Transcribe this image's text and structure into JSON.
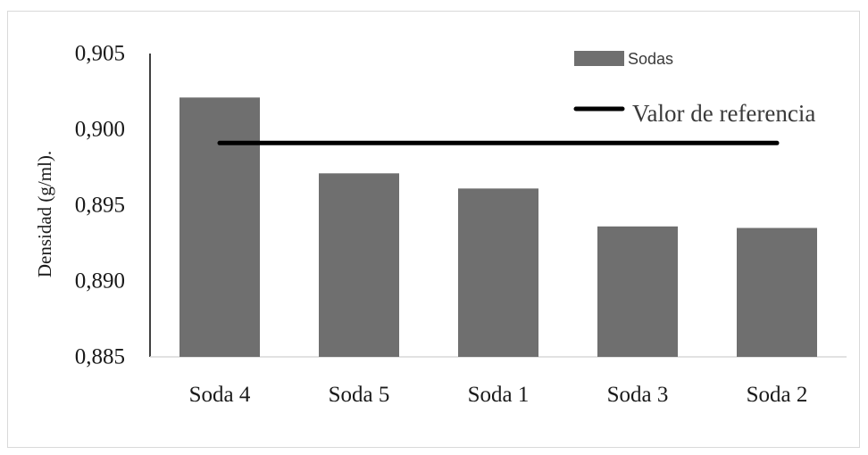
{
  "chart_data": {
    "type": "bar",
    "title": "",
    "xlabel": "",
    "ylabel": "Densidad (g/ml).",
    "categories": [
      "Soda 4",
      "Soda 5",
      "Soda 1",
      "Soda 3",
      "Soda 2"
    ],
    "series": [
      {
        "name": "Sodas",
        "type": "bar",
        "values": [
          0.9021,
          0.8971,
          0.8961,
          0.8936,
          0.8935
        ],
        "color": "#6f6f6f"
      },
      {
        "name": "Valor de referencia",
        "type": "line",
        "values": [
          0.8991,
          0.8991,
          0.8991,
          0.8991,
          0.8991
        ],
        "color": "#000000"
      }
    ],
    "ylim": [
      0.885,
      0.905
    ],
    "yticks": [
      0.885,
      0.89,
      0.895,
      0.9,
      0.905
    ],
    "ytick_labels": [
      "0,885",
      "0,890",
      "0,895",
      "0,900",
      "0,905"
    ],
    "grid": false,
    "legend_position": "top-right"
  }
}
